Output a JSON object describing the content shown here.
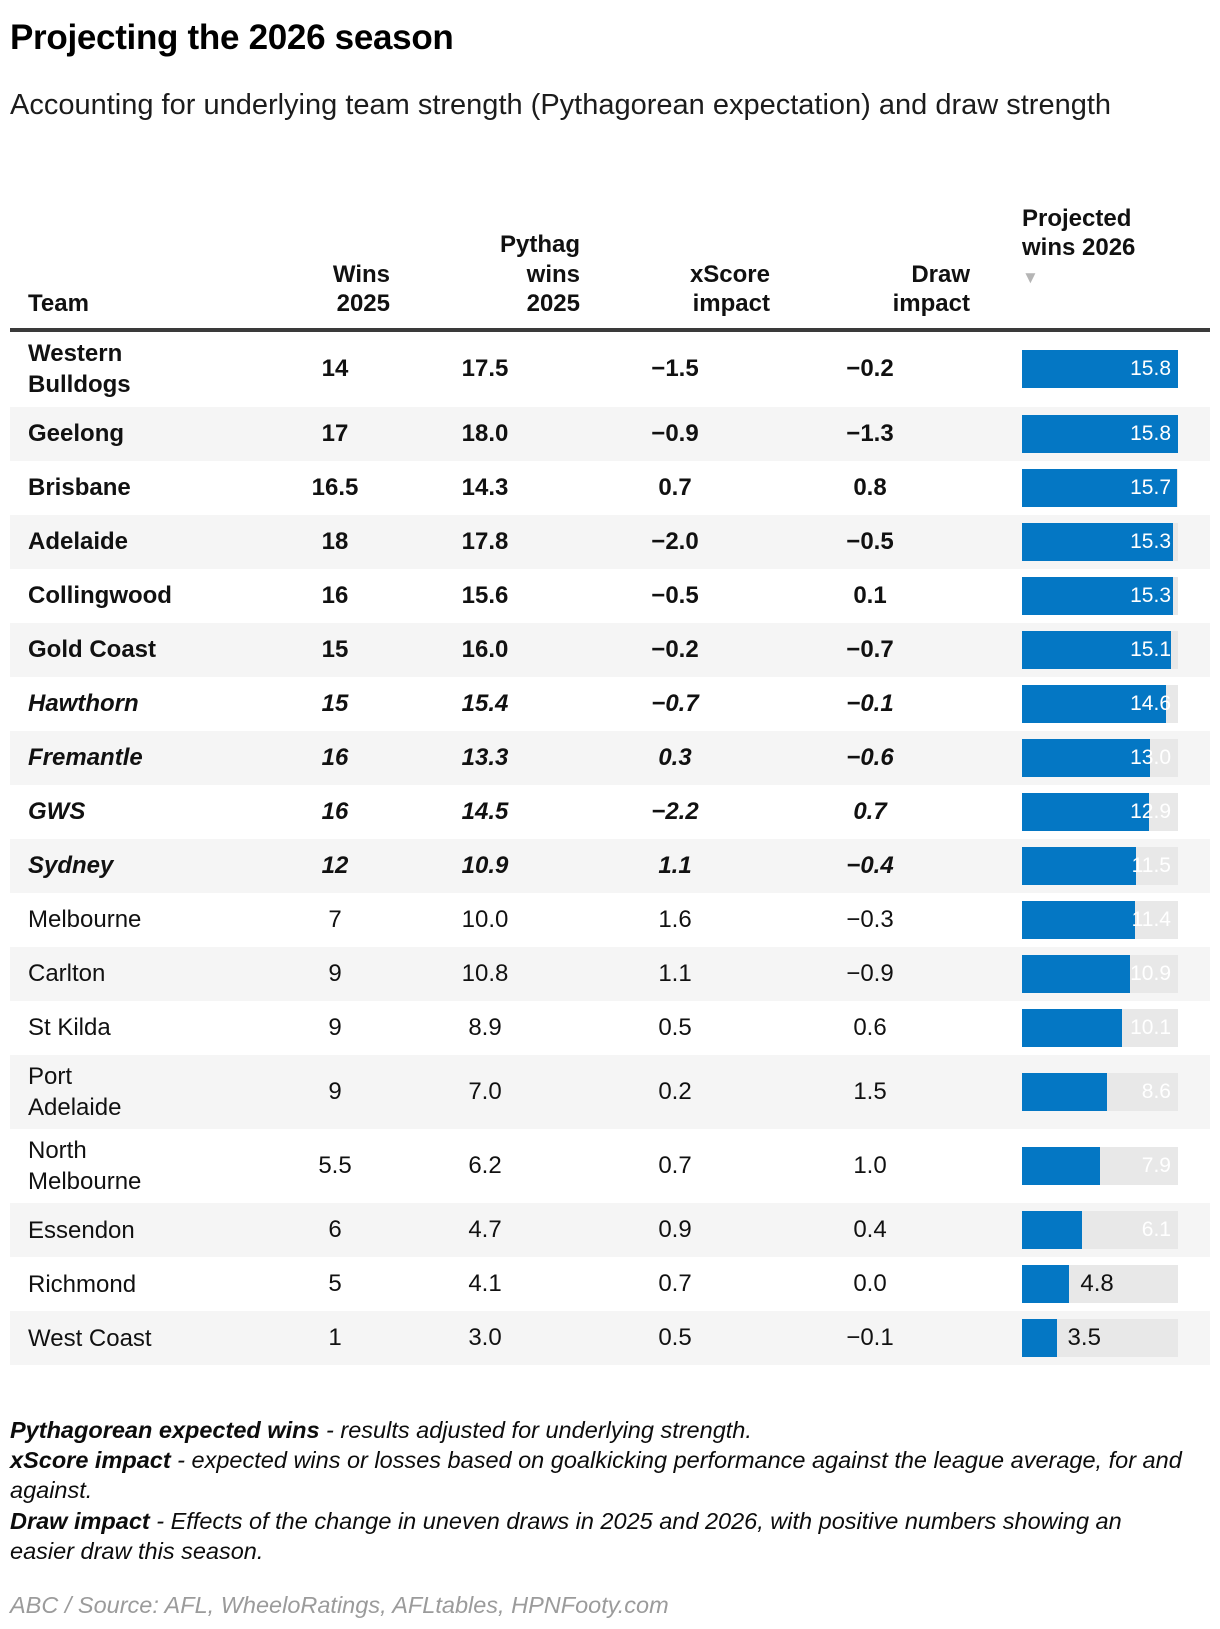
{
  "header": {
    "title": "Projecting the 2026 season",
    "subtitle": "Accounting for underlying team strength (Pythagorean expectation) and draw strength"
  },
  "table": {
    "columns": [
      {
        "key": "team",
        "label": "Team"
      },
      {
        "key": "wins_2025",
        "label": "Wins\n2025"
      },
      {
        "key": "pythag_wins_2025",
        "label": "Pythag\nwins\n2025"
      },
      {
        "key": "xscore_impact",
        "label": "xScore\nimpact"
      },
      {
        "key": "draw_impact",
        "label": "Draw\nimpact"
      },
      {
        "key": "projected_wins_2026",
        "label": "Projected\nwins 2026"
      }
    ],
    "sort_indicator": {
      "column": "projected_wins_2026",
      "direction": "descending",
      "icon": "triangle-down-icon",
      "glyph": "▼"
    }
  },
  "chart_data": {
    "type": "table",
    "title": "Projecting the 2026 season",
    "subtitle": "Accounting for underlying team strength (Pythagorean expectation) and draw strength",
    "bar_column": "projected_wins_2026",
    "bar_min": 0,
    "bar_max": 15.8,
    "sorted_by": "projected_wins_2026 descending",
    "rows": [
      {
        "team": "Western\nBulldogs",
        "wins_2025": "14",
        "pythag_wins_2025": "17.5",
        "xscore_impact": "−1.5",
        "draw_impact": "−0.2",
        "projected_wins_2026": 15.8,
        "projected_label": "15.8",
        "emphasis": "bold"
      },
      {
        "team": "Geelong",
        "wins_2025": "17",
        "pythag_wins_2025": "18.0",
        "xscore_impact": "−0.9",
        "draw_impact": "−1.3",
        "projected_wins_2026": 15.8,
        "projected_label": "15.8",
        "emphasis": "bold"
      },
      {
        "team": "Brisbane",
        "wins_2025": "16.5",
        "pythag_wins_2025": "14.3",
        "xscore_impact": "0.7",
        "draw_impact": "0.8",
        "projected_wins_2026": 15.7,
        "projected_label": "15.7",
        "emphasis": "bold"
      },
      {
        "team": "Adelaide",
        "wins_2025": "18",
        "pythag_wins_2025": "17.8",
        "xscore_impact": "−2.0",
        "draw_impact": "−0.5",
        "projected_wins_2026": 15.3,
        "projected_label": "15.3",
        "emphasis": "bold"
      },
      {
        "team": "Collingwood",
        "wins_2025": "16",
        "pythag_wins_2025": "15.6",
        "xscore_impact": "−0.5",
        "draw_impact": "0.1",
        "projected_wins_2026": 15.3,
        "projected_label": "15.3",
        "emphasis": "bold"
      },
      {
        "team": "Gold Coast",
        "wins_2025": "15",
        "pythag_wins_2025": "16.0",
        "xscore_impact": "−0.2",
        "draw_impact": "−0.7",
        "projected_wins_2026": 15.1,
        "projected_label": "15.1",
        "emphasis": "bold"
      },
      {
        "team": "Hawthorn",
        "wins_2025": "15",
        "pythag_wins_2025": "15.4",
        "xscore_impact": "−0.7",
        "draw_impact": "−0.1",
        "projected_wins_2026": 14.6,
        "projected_label": "14.6",
        "emphasis": "bold-italic"
      },
      {
        "team": "Fremantle",
        "wins_2025": "16",
        "pythag_wins_2025": "13.3",
        "xscore_impact": "0.3",
        "draw_impact": "−0.6",
        "projected_wins_2026": 13.0,
        "projected_label": "13.0",
        "emphasis": "bold-italic"
      },
      {
        "team": "GWS",
        "wins_2025": "16",
        "pythag_wins_2025": "14.5",
        "xscore_impact": "−2.2",
        "draw_impact": "0.7",
        "projected_wins_2026": 12.9,
        "projected_label": "12.9",
        "emphasis": "bold-italic"
      },
      {
        "team": "Sydney",
        "wins_2025": "12",
        "pythag_wins_2025": "10.9",
        "xscore_impact": "1.1",
        "draw_impact": "−0.4",
        "projected_wins_2026": 11.5,
        "projected_label": "11.5",
        "emphasis": "bold-italic"
      },
      {
        "team": "Melbourne",
        "wins_2025": "7",
        "pythag_wins_2025": "10.0",
        "xscore_impact": "1.6",
        "draw_impact": "−0.3",
        "projected_wins_2026": 11.4,
        "projected_label": "11.4",
        "emphasis": "regular"
      },
      {
        "team": "Carlton",
        "wins_2025": "9",
        "pythag_wins_2025": "10.8",
        "xscore_impact": "1.1",
        "draw_impact": "−0.9",
        "projected_wins_2026": 10.9,
        "projected_label": "10.9",
        "emphasis": "regular"
      },
      {
        "team": "St Kilda",
        "wins_2025": "9",
        "pythag_wins_2025": "8.9",
        "xscore_impact": "0.5",
        "draw_impact": "0.6",
        "projected_wins_2026": 10.1,
        "projected_label": "10.1",
        "emphasis": "regular"
      },
      {
        "team": "Port\nAdelaide",
        "wins_2025": "9",
        "pythag_wins_2025": "7.0",
        "xscore_impact": "0.2",
        "draw_impact": "1.5",
        "projected_wins_2026": 8.6,
        "projected_label": "8.6",
        "emphasis": "regular"
      },
      {
        "team": "North\nMelbourne",
        "wins_2025": "5.5",
        "pythag_wins_2025": "6.2",
        "xscore_impact": "0.7",
        "draw_impact": "1.0",
        "projected_wins_2026": 7.9,
        "projected_label": "7.9",
        "emphasis": "regular"
      },
      {
        "team": "Essendon",
        "wins_2025": "6",
        "pythag_wins_2025": "4.7",
        "xscore_impact": "0.9",
        "draw_impact": "0.4",
        "projected_wins_2026": 6.1,
        "projected_label": "6.1",
        "emphasis": "regular"
      },
      {
        "team": "Richmond",
        "wins_2025": "5",
        "pythag_wins_2025": "4.1",
        "xscore_impact": "0.7",
        "draw_impact": "0.0",
        "projected_wins_2026": 4.8,
        "projected_label": "4.8",
        "emphasis": "regular"
      },
      {
        "team": "West Coast",
        "wins_2025": "1",
        "pythag_wins_2025": "3.0",
        "xscore_impact": "0.5",
        "draw_impact": "−0.1",
        "projected_wins_2026": 3.5,
        "projected_label": "3.5",
        "emphasis": "regular"
      }
    ]
  },
  "footnotes": [
    {
      "term": "Pythagorean expected wins",
      "text": " - results adjusted for underlying strength."
    },
    {
      "term": "xScore impact",
      "text": " - expected wins or losses based on goalkicking performance against the league average, for and against."
    },
    {
      "term": "Draw impact",
      "text": " - Effects of the change in uneven draws in 2025 and 2026, with positive numbers showing an easier draw this season."
    }
  ],
  "source": "ABC / Source: AFL, WheeloRatings, AFLtables, HPNFooty.com",
  "colors": {
    "bar_fill": "#0477c4",
    "bar_track": "#e8e8e8",
    "row_alt": "#f5f5f5",
    "header_rule": "#3a3a3a",
    "sort_triangle": "#b5b5b5",
    "bar_label_inside": "#ffffff",
    "bar_label_outside": "#111111"
  }
}
